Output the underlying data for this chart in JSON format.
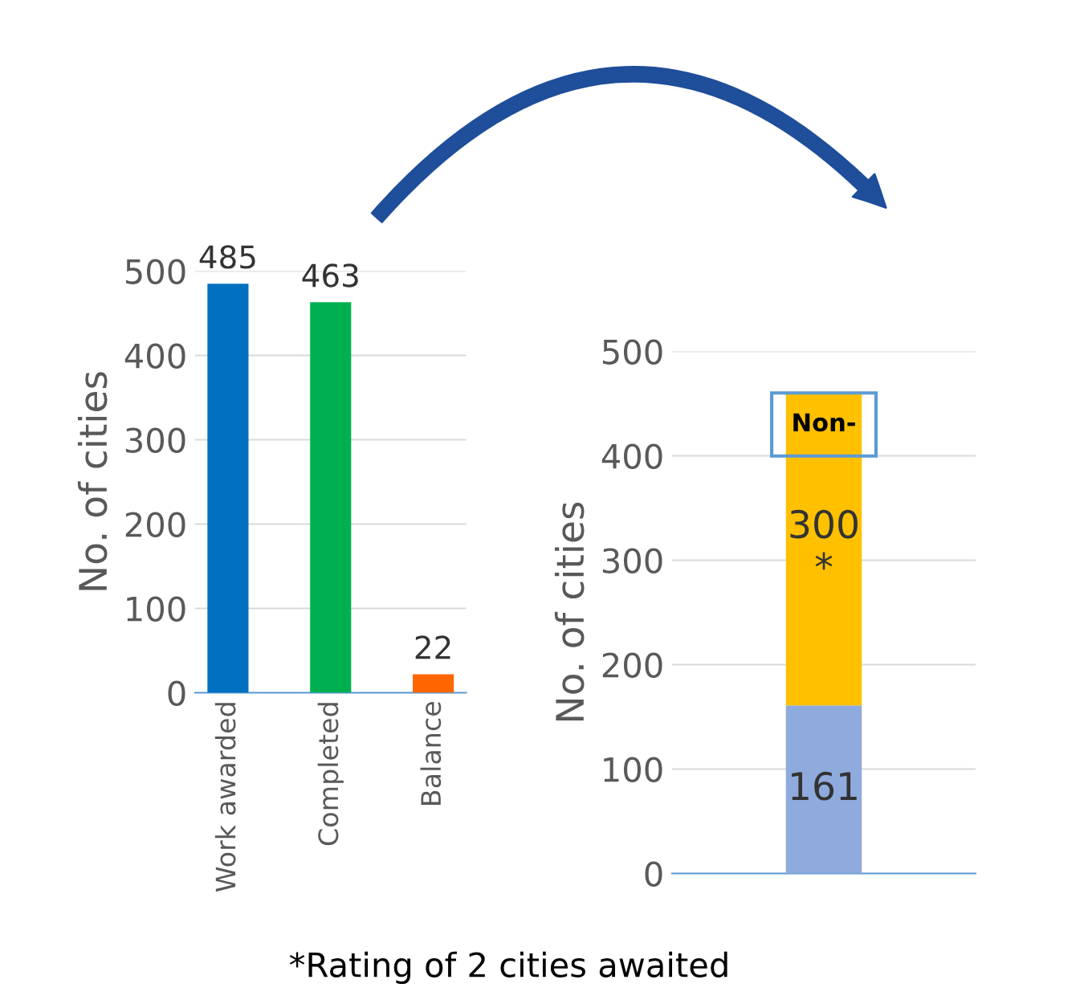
{
  "chart_data": [
    {
      "type": "bar",
      "ylabel": "No. of cities",
      "categories": [
        "Work awarded",
        "Completed",
        "Balance"
      ],
      "values": [
        485,
        463,
        22
      ],
      "colors": [
        "#0070c0",
        "#00b050",
        "#ff6600"
      ],
      "ylim": [
        0,
        500
      ],
      "yticks": [
        0,
        100,
        200,
        300,
        400,
        500
      ],
      "grid": "y",
      "data_labels": true
    },
    {
      "type": "bar",
      "ylabel": "No. of cities",
      "stacked": true,
      "categories": [
        null
      ],
      "series": [
        {
          "color": "#8faadc",
          "values": [
            161
          ],
          "value_labels": [
            "161"
          ]
        },
        {
          "color": "#ffc000",
          "values": [
            300
          ],
          "value_labels": [
            "300\n*"
          ]
        }
      ],
      "ylim": [
        0,
        500
      ],
      "yticks": [
        0,
        100,
        200,
        300,
        400,
        500
      ],
      "grid": "y",
      "annotations": [
        "Non-",
        "*Rating of 2 cities awaited"
      ]
    }
  ]
}
